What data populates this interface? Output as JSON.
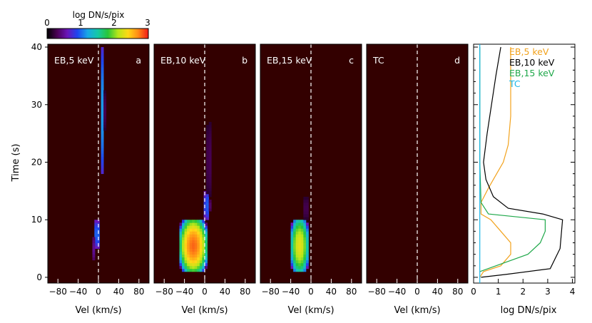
{
  "colorbar": {
    "title": "log DN/s/pix",
    "ticks": [
      "0",
      "1",
      "2",
      "3"
    ],
    "values": [
      0,
      1,
      2,
      3
    ]
  },
  "chart_data": [
    {
      "type": "heatmap",
      "panel_label": "EB,5 keV",
      "panel_letter": "a",
      "xlabel": "Vel (km/s)",
      "ylabel": "Time (s)",
      "xlim": [
        -100,
        100
      ],
      "ylim": [
        -1,
        40.5
      ],
      "xticks": [
        -80,
        -40,
        0,
        40,
        80
      ],
      "yticks": [
        0,
        10,
        20,
        30,
        40
      ],
      "xticklabels": [
        "−80",
        "−40",
        "0",
        "40",
        "80"
      ],
      "blobs": [
        {
          "t": [
            18,
            40
          ],
          "v": [
            5,
            12
          ],
          "peak": 1.2
        },
        {
          "t": [
            5,
            10
          ],
          "v": [
            -8,
            2
          ],
          "peak": 1.1
        },
        {
          "t": [
            3,
            7
          ],
          "v": [
            -12,
            -5
          ],
          "peak": 0.5
        }
      ]
    },
    {
      "type": "heatmap",
      "panel_label": "EB,10 keV",
      "panel_letter": "b",
      "xlabel": "Vel (km/s)",
      "xlim": [
        -100,
        100
      ],
      "ylim": [
        -1,
        40.5
      ],
      "xticks": [
        -80,
        -40,
        0,
        40,
        80
      ],
      "xticklabels": [
        "−80",
        "−40",
        "0",
        "40",
        "80"
      ],
      "blobs": [
        {
          "t": [
            1,
            10
          ],
          "v": [
            -50,
            5
          ],
          "peak": 2.8
        },
        {
          "t": [
            10,
            15
          ],
          "v": [
            -2,
            10
          ],
          "peak": 1.0
        },
        {
          "t": [
            14,
            27
          ],
          "v": [
            3,
            14
          ],
          "peak": 0.3
        }
      ]
    },
    {
      "type": "heatmap",
      "panel_label": "EB,15 keV",
      "panel_letter": "c",
      "xlabel": "Vel (km/s)",
      "xlim": [
        -100,
        100
      ],
      "ylim": [
        -1,
        40.5
      ],
      "xticks": [
        -80,
        -40,
        0,
        40,
        80
      ],
      "xticklabels": [
        "−80",
        "−40",
        "0",
        "40",
        "80"
      ],
      "blobs": [
        {
          "t": [
            1,
            10
          ],
          "v": [
            -40,
            -5
          ],
          "peak": 2.3
        },
        {
          "t": [
            10,
            14
          ],
          "v": [
            -15,
            -5
          ],
          "peak": 0.3
        }
      ]
    },
    {
      "type": "heatmap",
      "panel_label": "TC",
      "panel_letter": "d",
      "xlabel": "Vel (km/s)",
      "xlim": [
        -100,
        100
      ],
      "ylim": [
        -1,
        40.5
      ],
      "xticks": [
        -80,
        -40,
        0,
        40,
        80
      ],
      "xticklabels": [
        "−80",
        "−40",
        "0",
        "40",
        "80"
      ],
      "blobs": []
    },
    {
      "type": "line",
      "xlabel": "log DN/s/pix",
      "xlim": [
        0,
        4.1
      ],
      "ylim": [
        -1,
        40.5
      ],
      "xticks": [
        0,
        1,
        2,
        3,
        4
      ],
      "series": [
        {
          "name": "EB,5 keV",
          "color": "#f2a21c",
          "points": [
            [
              0.25,
              0
            ],
            [
              0.4,
              1
            ],
            [
              1.1,
              2
            ],
            [
              1.5,
              4
            ],
            [
              1.5,
              6
            ],
            [
              1.1,
              8
            ],
            [
              0.7,
              10
            ],
            [
              0.3,
              11
            ],
            [
              0.3,
              13
            ],
            [
              0.6,
              15.5
            ],
            [
              0.8,
              17
            ],
            [
              1.2,
              20
            ],
            [
              1.4,
              23
            ],
            [
              1.5,
              28
            ],
            [
              1.5,
              35
            ],
            [
              1.5,
              40
            ]
          ]
        },
        {
          "name": "EB,10 keV",
          "color": "#000000",
          "points": [
            [
              0.3,
              0
            ],
            [
              1.3,
              0.5
            ],
            [
              3.1,
              1.5
            ],
            [
              3.5,
              5
            ],
            [
              3.6,
              10
            ],
            [
              2.8,
              11
            ],
            [
              1.4,
              12
            ],
            [
              0.8,
              14
            ],
            [
              0.5,
              17
            ],
            [
              0.4,
              20
            ],
            [
              0.55,
              25
            ],
            [
              0.9,
              35
            ],
            [
              1.1,
              40
            ]
          ]
        },
        {
          "name": "EB,15 keV",
          "color": "#1fa84a",
          "points": [
            [
              0.25,
              1
            ],
            [
              0.9,
              2
            ],
            [
              2.2,
              4
            ],
            [
              2.7,
              6
            ],
            [
              2.9,
              8
            ],
            [
              2.9,
              10
            ],
            [
              0.6,
              11
            ],
            [
              0.3,
              13
            ],
            [
              0.25,
              20
            ],
            [
              0.25,
              40
            ]
          ]
        },
        {
          "name": "TC",
          "color": "#19b6e8",
          "points": [
            [
              0.25,
              -1
            ],
            [
              0.25,
              40.5
            ]
          ]
        }
      ]
    }
  ]
}
